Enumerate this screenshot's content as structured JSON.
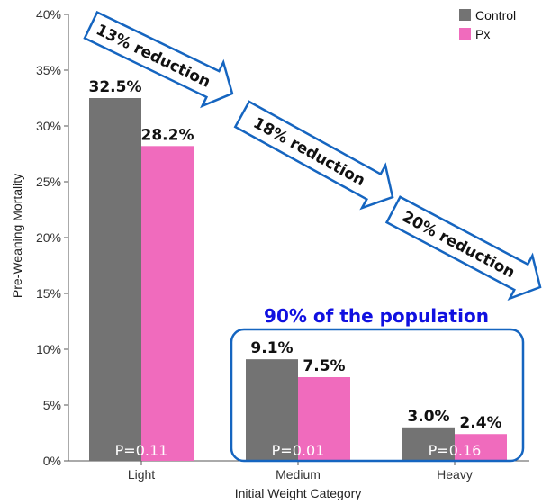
{
  "chart_data": {
    "type": "bar",
    "categories": [
      "Light",
      "Medium",
      "Heavy"
    ],
    "series": [
      {
        "name": "Control",
        "color": "#737373",
        "values": [
          32.5,
          9.1,
          3.0
        ],
        "labels": [
          "32.5%",
          "9.1%",
          "3.0%"
        ]
      },
      {
        "name": "Px",
        "color": "#f06bbd",
        "values": [
          28.2,
          7.5,
          2.4
        ],
        "labels": [
          "28.2%",
          "7.5%",
          "2.4%"
        ]
      }
    ],
    "ylabel": "Pre-Weaning Mortality",
    "xlabel": "Initial Weight Category",
    "ylim": [
      0,
      40
    ],
    "yticks": [
      "0%",
      "5%",
      "10%",
      "15%",
      "20%",
      "25%",
      "30%",
      "35%",
      "40%"
    ],
    "p_values": [
      "P=0.11",
      "P=0.01",
      "P=0.16"
    ],
    "annotations": {
      "reductions": [
        "13% reduction",
        "18% reduction",
        "20% reduction"
      ],
      "callout": "90% of the population"
    },
    "legend_position": "top-right",
    "grid": false,
    "accent_color": "#1565c0",
    "callout_color": "#1010e0"
  }
}
